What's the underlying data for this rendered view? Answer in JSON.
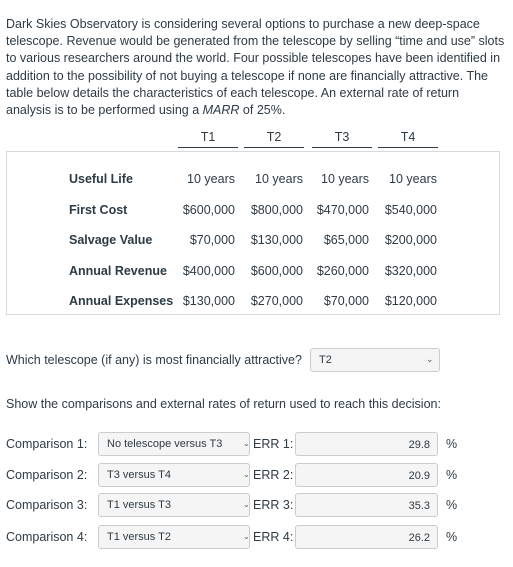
{
  "intro": {
    "line1": "Dark Skies Observatory is considering several options to purchase a new deep-space",
    "line2": "telescope. Revenue would be generated from the telescope by selling “time and use” slots",
    "line3": "to various researchers around the world. Four possible telescopes have been identified in",
    "line4": "addition to the possibility of not buying a telescope if none are financially attractive. The",
    "line5": "table below details the characteristics of each telescope. An external rate of return",
    "line6_pre": "analysis is to be performed using a ",
    "line6_em": "MARR",
    "line6_post": " of 25%."
  },
  "table": {
    "columns": [
      "T1",
      "T2",
      "T3",
      "T4"
    ],
    "rows": [
      {
        "label": "Useful Life",
        "values": [
          "10 years",
          "10 years",
          "10 years",
          "10 years"
        ]
      },
      {
        "label": "First Cost",
        "values": [
          "$600,000",
          "$800,000",
          "$470,000",
          "$540,000"
        ]
      },
      {
        "label": "Salvage Value",
        "values": [
          "$70,000",
          "$130,000",
          "$65,000",
          "$200,000"
        ]
      },
      {
        "label": "Annual Revenue",
        "values": [
          "$400,000",
          "$600,000",
          "$260,000",
          "$320,000"
        ]
      },
      {
        "label": "Annual Expenses",
        "values": [
          "$130,000",
          "$270,000",
          "$70,000",
          "$120,000"
        ]
      }
    ]
  },
  "question": {
    "text": "Which telescope (if any) is most financially attractive?",
    "selected": "T2",
    "icon": "chevron-down-icon"
  },
  "show_text": "Show the comparisons and external rates of return used to reach this decision:",
  "comparisons": [
    {
      "label": "Comparison 1:",
      "select": "No telescope versus T3",
      "err_label": "ERR 1:",
      "err_value": "29.8",
      "unit": "%"
    },
    {
      "label": "Comparison 2:",
      "select": "T3 versus T4",
      "err_label": "ERR 2:",
      "err_value": "20.9",
      "unit": "%"
    },
    {
      "label": "Comparison 3:",
      "select": "T1 versus T3",
      "err_label": "ERR 3:",
      "err_value": "35.3",
      "unit": "%"
    },
    {
      "label": "Comparison 4:",
      "select": "T1 versus T2",
      "err_label": "ERR 4:",
      "err_value": "26.2",
      "unit": "%"
    }
  ]
}
